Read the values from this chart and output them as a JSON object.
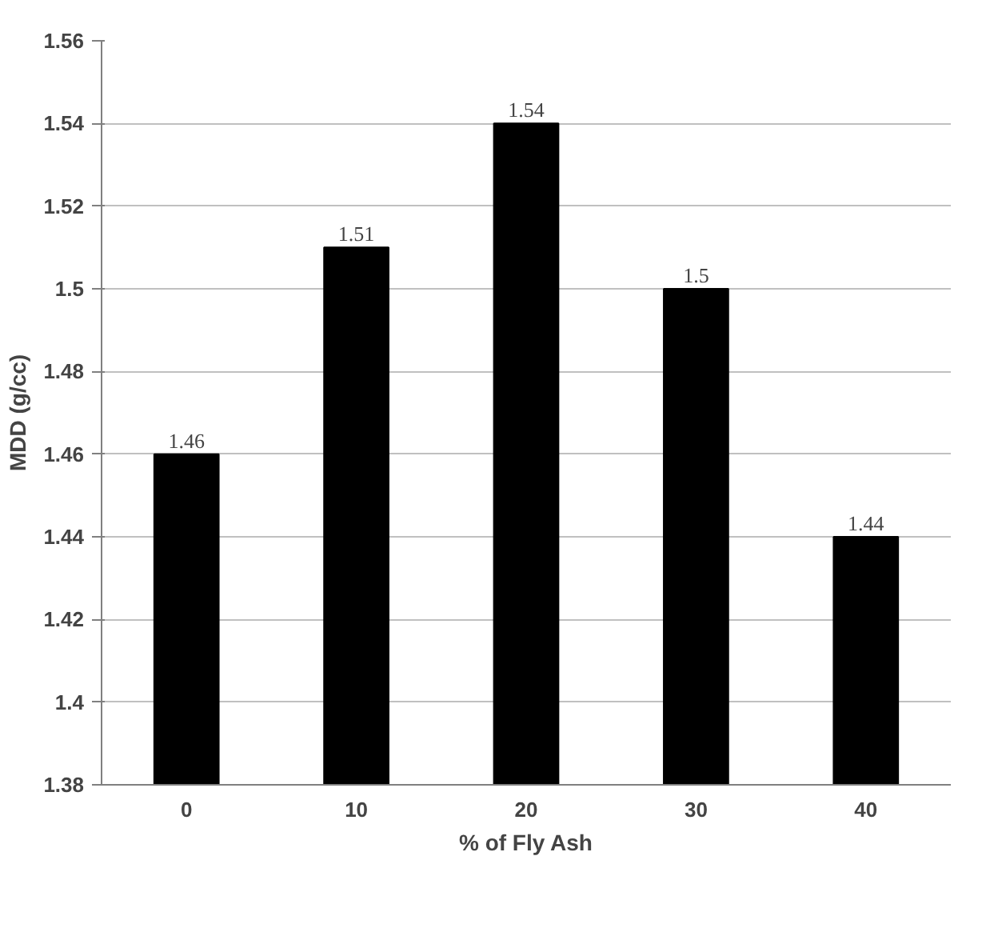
{
  "chart_data": {
    "type": "bar",
    "xlabel": "% of Fly Ash",
    "ylabel": "MDD (g/cc)",
    "categories": [
      "0",
      "10",
      "20",
      "30",
      "40"
    ],
    "values": [
      1.46,
      1.51,
      1.54,
      1.5,
      1.44
    ],
    "color": "#000000",
    "ylim": [
      1.38,
      1.56
    ],
    "yticks": [
      1.38,
      1.4,
      1.42,
      1.44,
      1.46,
      1.48,
      1.5,
      1.52,
      1.54,
      1.56
    ],
    "grid": "y",
    "data_labels": true
  }
}
